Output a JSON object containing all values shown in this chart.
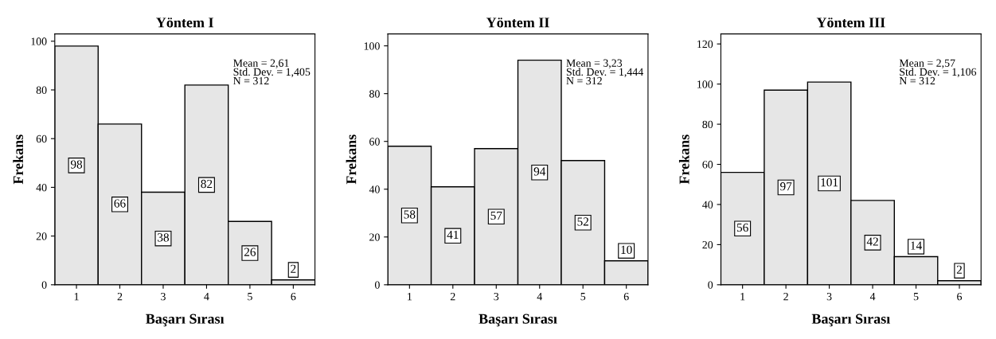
{
  "chart_data": [
    {
      "type": "histogram",
      "title": "Yöntem I",
      "xlabel": "Başarı Sırası",
      "ylabel": "Frekans",
      "bins": [
        0.5,
        1.5,
        2.5,
        3.5,
        4.5,
        5.5,
        6.5
      ],
      "values": [
        98,
        66,
        38,
        82,
        26,
        2
      ],
      "color": "#e6e6e6",
      "xlim": [
        0.5,
        6.5
      ],
      "xticks": [
        1,
        2,
        3,
        4,
        5,
        6
      ],
      "ylim": [
        0,
        103
      ],
      "yticks": [
        0,
        20,
        40,
        60,
        80,
        100
      ],
      "data_labels": true,
      "grid": false,
      "annotations": [
        "Mean = 2,61\nStd. Dev. = 1,405\nN = 312"
      ]
    },
    {
      "type": "histogram",
      "title": "Yöntem II",
      "xlabel": "Başarı Sırası",
      "ylabel": "Frekans",
      "bins": [
        0.5,
        1.5,
        2.5,
        3.5,
        4.5,
        5.5,
        6.5
      ],
      "values": [
        58,
        41,
        57,
        94,
        52,
        10
      ],
      "color": "#e6e6e6",
      "xlim": [
        0.5,
        6.5
      ],
      "xticks": [
        1,
        2,
        3,
        4,
        5,
        6
      ],
      "ylim": [
        0,
        105
      ],
      "yticks": [
        0,
        20,
        40,
        60,
        80,
        100
      ],
      "data_labels": true,
      "grid": false,
      "annotations": [
        "Mean = 3,23\nStd. Dev. = 1,444\nN = 312"
      ]
    },
    {
      "type": "histogram",
      "title": "Yöntem III",
      "xlabel": "Başarı Sırası",
      "ylabel": "Frekans",
      "bins": [
        0.5,
        1.5,
        2.5,
        3.5,
        4.5,
        5.5,
        6.5
      ],
      "values": [
        56,
        97,
        101,
        42,
        14,
        2
      ],
      "color": "#e6e6e6",
      "xlim": [
        0.5,
        6.5
      ],
      "xticks": [
        1,
        2,
        3,
        4,
        5,
        6
      ],
      "ylim": [
        0,
        125
      ],
      "yticks": [
        0,
        20,
        40,
        60,
        80,
        100,
        120
      ],
      "data_labels": true,
      "grid": false,
      "annotations": [
        "Mean = 2,57\nStd. Dev. = 1,106\nN = 312"
      ]
    }
  ]
}
